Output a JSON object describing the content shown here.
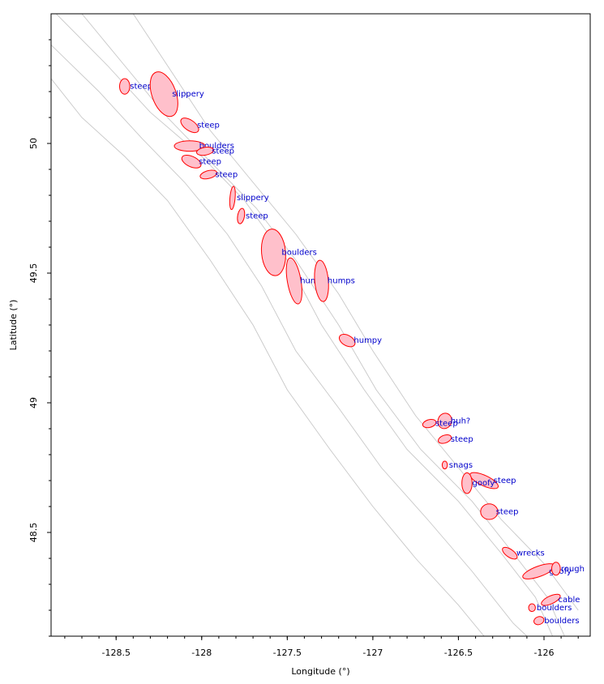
{
  "colors": {
    "zone_fill": "#ffc0cb",
    "zone_stroke": "#ff0000",
    "label": "#0000cc",
    "contour": "#c8c8c8",
    "axis": "#000000"
  },
  "chart_data": {
    "type": "map",
    "xlabel": "Longitude (°)",
    "ylabel": "Latitude (°)",
    "xlim": [
      -128.88,
      -125.73
    ],
    "ylim": [
      48.1,
      50.5
    ],
    "xticks": [
      -128.5,
      -128,
      -127.5,
      -127,
      -126.5,
      -126
    ],
    "xtick_labels": [
      "-128.5",
      "-128",
      "-127.5",
      "-127",
      "-126.5",
      "-126"
    ],
    "yticks": [
      48.5,
      49,
      49.5,
      50
    ],
    "ytick_labels": [
      "48.5",
      "49",
      "49.5",
      "50"
    ],
    "grid": false,
    "zones": [
      {
        "label": "steep",
        "lon": -128.45,
        "lat": 50.22,
        "rx": 0.03,
        "ry": 0.03,
        "rot": 0
      },
      {
        "label": "slippery",
        "lon": -128.22,
        "lat": 50.19,
        "rx": 0.07,
        "ry": 0.09,
        "rot": -20
      },
      {
        "label": "steep",
        "lon": -128.07,
        "lat": 50.07,
        "rx": 0.06,
        "ry": 0.02,
        "rot": 35
      },
      {
        "label": "boulders",
        "lon": -128.07,
        "lat": 49.99,
        "rx": 0.09,
        "ry": 0.02,
        "rot": 0
      },
      {
        "label": "steep",
        "lon": -127.98,
        "lat": 49.97,
        "rx": 0.05,
        "ry": 0.015,
        "rot": -10
      },
      {
        "label": "steep",
        "lon": -128.06,
        "lat": 49.93,
        "rx": 0.06,
        "ry": 0.02,
        "rot": 25
      },
      {
        "label": "steep",
        "lon": -127.96,
        "lat": 49.88,
        "rx": 0.05,
        "ry": 0.015,
        "rot": -15
      },
      {
        "label": "slippery",
        "lon": -127.82,
        "lat": 49.79,
        "rx": 0.015,
        "ry": 0.045,
        "rot": 5
      },
      {
        "label": "steep",
        "lon": -127.77,
        "lat": 49.72,
        "rx": 0.02,
        "ry": 0.03,
        "rot": 10
      },
      {
        "label": "boulders",
        "lon": -127.58,
        "lat": 49.58,
        "rx": 0.07,
        "ry": 0.09,
        "rot": -5
      },
      {
        "label": "humpy",
        "lon": -127.46,
        "lat": 49.47,
        "rx": 0.04,
        "ry": 0.09,
        "rot": -10
      },
      {
        "label": "humps",
        "lon": -127.3,
        "lat": 49.47,
        "rx": 0.04,
        "ry": 0.08,
        "rot": -5
      },
      {
        "label": "humpy",
        "lon": -127.15,
        "lat": 49.24,
        "rx": 0.05,
        "ry": 0.02,
        "rot": 30
      },
      {
        "label": "huh?",
        "lon": -126.58,
        "lat": 48.93,
        "rx": 0.04,
        "ry": 0.03,
        "rot": 20
      },
      {
        "label": "steep",
        "lon": -126.67,
        "lat": 48.92,
        "rx": 0.04,
        "ry": 0.015,
        "rot": -15
      },
      {
        "label": "steep",
        "lon": -126.58,
        "lat": 48.86,
        "rx": 0.04,
        "ry": 0.015,
        "rot": -20
      },
      {
        "label": "snags",
        "lon": -126.58,
        "lat": 48.76,
        "rx": 0.015,
        "ry": 0.015,
        "rot": 0
      },
      {
        "label": "steep",
        "lon": -126.35,
        "lat": 48.7,
        "rx": 0.09,
        "ry": 0.02,
        "rot": 25
      },
      {
        "label": "goofy",
        "lon": -126.45,
        "lat": 48.69,
        "rx": 0.03,
        "ry": 0.04,
        "rot": 0
      },
      {
        "label": "steep",
        "lon": -126.32,
        "lat": 48.58,
        "rx": 0.05,
        "ry": 0.03,
        "rot": 0
      },
      {
        "label": "wrecks",
        "lon": -126.2,
        "lat": 48.42,
        "rx": 0.05,
        "ry": 0.015,
        "rot": 35
      },
      {
        "label": "goofy",
        "lon": -126.03,
        "lat": 48.35,
        "rx": 0.1,
        "ry": 0.02,
        "rot": -20
      },
      {
        "label": "rough",
        "lon": -125.93,
        "lat": 48.36,
        "rx": 0.025,
        "ry": 0.025,
        "rot": 0
      },
      {
        "label": "cable",
        "lon": -125.96,
        "lat": 48.24,
        "rx": 0.06,
        "ry": 0.015,
        "rot": -25
      },
      {
        "label": "boulders",
        "lon": -126.07,
        "lat": 48.21,
        "rx": 0.02,
        "ry": 0.015,
        "rot": 0
      },
      {
        "label": "boulders",
        "lon": -126.03,
        "lat": 48.16,
        "rx": 0.03,
        "ry": 0.015,
        "rot": -20
      }
    ],
    "contour_lines": [
      [
        [
          -128.85,
          50.5
        ],
        [
          -128.55,
          50.3
        ],
        [
          -128.3,
          50.12
        ],
        [
          -128.0,
          49.95
        ],
        [
          -127.75,
          49.78
        ],
        [
          -127.5,
          49.55
        ],
        [
          -127.3,
          49.3
        ],
        [
          -127.05,
          49.05
        ],
        [
          -126.8,
          48.82
        ],
        [
          -126.5,
          48.62
        ],
        [
          -126.25,
          48.42
        ],
        [
          -126.05,
          48.25
        ],
        [
          -125.95,
          48.1
        ]
      ],
      [
        [
          -128.7,
          50.5
        ],
        [
          -128.45,
          50.3
        ],
        [
          -128.2,
          50.1
        ],
        [
          -127.95,
          49.93
        ],
        [
          -127.68,
          49.75
        ],
        [
          -127.45,
          49.55
        ],
        [
          -127.2,
          49.3
        ],
        [
          -126.98,
          49.05
        ],
        [
          -126.72,
          48.82
        ],
        [
          -126.42,
          48.62
        ],
        [
          -126.18,
          48.42
        ],
        [
          -125.98,
          48.25
        ],
        [
          -125.88,
          48.1
        ]
      ],
      [
        [
          -128.88,
          50.38
        ],
        [
          -128.6,
          50.2
        ],
        [
          -128.35,
          50.02
        ],
        [
          -128.1,
          49.85
        ],
        [
          -127.85,
          49.65
        ],
        [
          -127.65,
          49.45
        ],
        [
          -127.45,
          49.2
        ],
        [
          -127.2,
          48.98
        ],
        [
          -126.95,
          48.75
        ],
        [
          -126.68,
          48.55
        ],
        [
          -126.42,
          48.35
        ],
        [
          -126.18,
          48.15
        ],
        [
          -126.1,
          48.1
        ]
      ],
      [
        [
          -128.4,
          50.5
        ],
        [
          -128.2,
          50.3
        ],
        [
          -127.95,
          50.05
        ],
        [
          -127.7,
          49.85
        ],
        [
          -127.45,
          49.65
        ],
        [
          -127.2,
          49.42
        ],
        [
          -127.0,
          49.2
        ],
        [
          -126.75,
          48.95
        ],
        [
          -126.5,
          48.75
        ],
        [
          -126.25,
          48.55
        ],
        [
          -126.0,
          48.38
        ],
        [
          -125.8,
          48.2
        ]
      ],
      [
        [
          -128.88,
          50.25
        ],
        [
          -128.7,
          50.1
        ],
        [
          -128.45,
          49.95
        ],
        [
          -128.2,
          49.78
        ],
        [
          -127.95,
          49.55
        ],
        [
          -127.7,
          49.3
        ],
        [
          -127.5,
          49.05
        ],
        [
          -127.25,
          48.82
        ],
        [
          -127.0,
          48.6
        ],
        [
          -126.75,
          48.4
        ],
        [
          -126.5,
          48.22
        ],
        [
          -126.35,
          48.1
        ]
      ]
    ]
  }
}
